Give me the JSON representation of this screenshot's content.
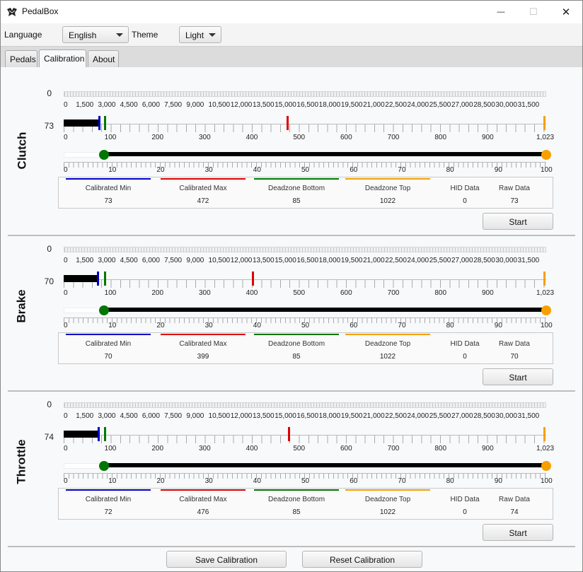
{
  "window": {
    "title": "PedalBox",
    "minimize": "—",
    "maximize": "☐",
    "close": "✕"
  },
  "toolbar": {
    "language_label": "Language",
    "language_value": "English",
    "theme_label": "Theme",
    "theme_value": "Light"
  },
  "tabs": [
    {
      "label": "Pedals"
    },
    {
      "label": "Calibration"
    },
    {
      "label": "About"
    }
  ],
  "selected_tab": "Calibration",
  "raw_scale": {
    "min": 0,
    "max": 32767,
    "ticks": [
      "0",
      "1,500",
      "3,000",
      "4,500",
      "6,000",
      "7,500",
      "9,000",
      "10,500",
      "12,000",
      "13,500",
      "15,000",
      "16,500",
      "18,000",
      "19,500",
      "21,000",
      "22,500",
      "24,000",
      "25,500",
      "27,000",
      "28,500",
      "30,000",
      "31,500"
    ],
    "tick_values": [
      0,
      1500,
      3000,
      4500,
      6000,
      7500,
      9000,
      10500,
      12000,
      13500,
      15000,
      16500,
      18000,
      19500,
      21000,
      22500,
      24000,
      25500,
      27000,
      28500,
      30000,
      31500
    ]
  },
  "cal_scale": {
    "min": 0,
    "max": 1023,
    "ticks": [
      "0",
      "100",
      "200",
      "300",
      "400",
      "500",
      "600",
      "700",
      "800",
      "900",
      "1,023"
    ],
    "tick_values": [
      0,
      100,
      200,
      300,
      400,
      500,
      600,
      700,
      800,
      900,
      1023
    ]
  },
  "pct_scale": {
    "min": 0,
    "max": 100,
    "ticks": [
      "0",
      "10",
      "20",
      "30",
      "40",
      "50",
      "60",
      "70",
      "80",
      "90",
      "100"
    ],
    "tick_values": [
      0,
      10,
      20,
      30,
      40,
      50,
      60,
      70,
      80,
      90,
      100
    ]
  },
  "colors": {
    "cal_min": "#0000cc",
    "cal_max": "#dd0000",
    "deadzone_bottom": "#007700",
    "deadzone_top": "#f5a000"
  },
  "columns": {
    "cal_min": "Calibrated Min",
    "cal_max": "Calibrated Max",
    "dz_bottom": "Deadzone Bottom",
    "dz_top": "Deadzone Top",
    "hid": "HID Data",
    "raw": "Raw Data"
  },
  "pedals": [
    {
      "name": "Clutch",
      "raw_value": "0",
      "cal_value": "73",
      "calibrated_min": "73",
      "calibrated_max": "472",
      "deadzone_bottom": "85",
      "deadzone_top": "1022",
      "hid_data": "0",
      "raw_data": "73",
      "start_label": "Start",
      "pct_low": 8.3,
      "pct_high": 100
    },
    {
      "name": "Brake",
      "raw_value": "0",
      "cal_value": "70",
      "calibrated_min": "70",
      "calibrated_max": "399",
      "deadzone_bottom": "85",
      "deadzone_top": "1022",
      "hid_data": "0",
      "raw_data": "70",
      "start_label": "Start",
      "pct_low": 8.3,
      "pct_high": 100
    },
    {
      "name": "Throttle",
      "raw_value": "0",
      "cal_value": "74",
      "calibrated_min": "72",
      "calibrated_max": "476",
      "deadzone_bottom": "85",
      "deadzone_top": "1022",
      "hid_data": "0",
      "raw_data": "74",
      "start_label": "Start",
      "pct_low": 8.3,
      "pct_high": 100
    }
  ],
  "footer": {
    "save_label": "Save Calibration",
    "reset_label": "Reset Calibration"
  }
}
